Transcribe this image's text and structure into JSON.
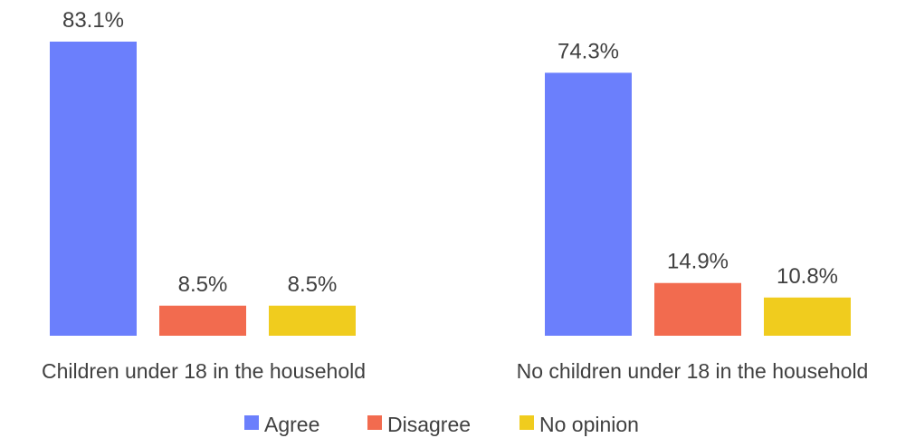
{
  "chart_data": {
    "type": "bar",
    "title": "",
    "xlabel": "",
    "ylabel": "",
    "categories": [
      "Children under 18 in the household",
      "No children under 18 in the household"
    ],
    "series": [
      {
        "name": "Agree",
        "color": "#6b7ffc",
        "values": [
          83.1,
          74.3
        ],
        "labels": [
          "83.1%",
          "74.3%"
        ]
      },
      {
        "name": "Disagree",
        "color": "#f26b4f",
        "values": [
          8.5,
          14.9
        ],
        "labels": [
          "8.5%",
          "14.9%"
        ]
      },
      {
        "name": "No opinion",
        "color": "#f0cc1e",
        "values": [
          8.5,
          10.8
        ],
        "labels": [
          "8.5%",
          "10.8%"
        ]
      }
    ],
    "ylim": [
      0,
      83.1
    ],
    "grid": false,
    "legend_position": "bottom"
  }
}
